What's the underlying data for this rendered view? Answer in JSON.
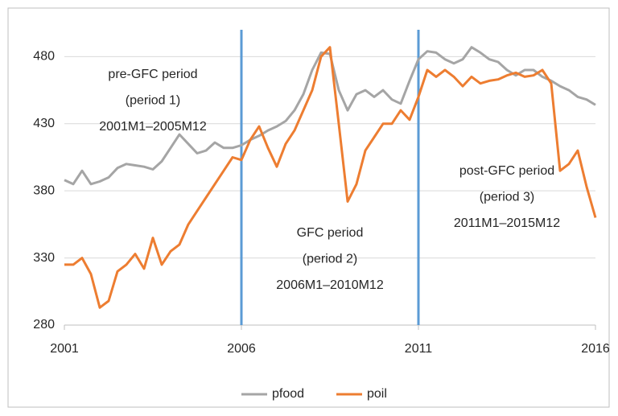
{
  "chart_data": {
    "type": "line",
    "x": [
      2001,
      2001.25,
      2001.5,
      2001.75,
      2002,
      2002.25,
      2002.5,
      2002.75,
      2003,
      2003.25,
      2003.5,
      2003.75,
      2004,
      2004.25,
      2004.5,
      2004.75,
      2005,
      2005.25,
      2005.5,
      2005.75,
      2006,
      2006.25,
      2006.5,
      2006.75,
      2007,
      2007.25,
      2007.5,
      2007.75,
      2008,
      2008.25,
      2008.5,
      2008.75,
      2009,
      2009.25,
      2009.5,
      2009.75,
      2010,
      2010.25,
      2010.5,
      2010.75,
      2011,
      2011.25,
      2011.5,
      2011.75,
      2012,
      2012.25,
      2012.5,
      2012.75,
      2013,
      2013.25,
      2013.5,
      2013.75,
      2014,
      2014.25,
      2014.5,
      2014.75,
      2015,
      2015.25,
      2015.5,
      2015.75,
      2016
    ],
    "series": [
      {
        "name": "pfood",
        "color": "#a5a5a5",
        "values": [
          388,
          385,
          395,
          385,
          387,
          390,
          397,
          400,
          399,
          398,
          396,
          402,
          412,
          422,
          415,
          408,
          410,
          416,
          412,
          412,
          414,
          418,
          421,
          425,
          428,
          432,
          440,
          452,
          470,
          483,
          482,
          455,
          440,
          452,
          455,
          450,
          455,
          448,
          445,
          462,
          478,
          484,
          483,
          478,
          475,
          478,
          487,
          483,
          478,
          476,
          470,
          466,
          470,
          470,
          465,
          462,
          458,
          455,
          450,
          448,
          444
        ]
      },
      {
        "name": "poil",
        "color": "#ed7d31",
        "values": [
          325,
          325,
          330,
          318,
          293,
          298,
          320,
          325,
          333,
          322,
          345,
          325,
          335,
          340,
          355,
          365,
          375,
          385,
          395,
          405,
          403,
          418,
          428,
          412,
          398,
          415,
          425,
          440,
          455,
          480,
          487,
          430,
          372,
          385,
          410,
          420,
          430,
          430,
          440,
          433,
          450,
          470,
          465,
          470,
          465,
          458,
          465,
          460,
          462,
          463,
          466,
          468,
          465,
          466,
          470,
          460,
          395,
          400,
          410,
          383,
          360
        ]
      }
    ],
    "xlim": [
      2001,
      2016
    ],
    "xticks": [
      2001,
      2006,
      2011,
      2016
    ],
    "ylim": [
      280,
      500
    ],
    "yticks": [
      280,
      330,
      380,
      430,
      480
    ],
    "grid": true,
    "vlines": [
      2006,
      2011
    ],
    "vline_color": "#5b9bd5",
    "annotations": [
      [
        "pre-GFC period",
        "(period 1)",
        "2001M1–2005M12"
      ],
      [
        "GFC period",
        "(period 2)",
        "2006M1–2010M12"
      ],
      [
        "post-GFC period",
        "(period 3)",
        "2011M1–2015M12"
      ]
    ],
    "legend": "bottom"
  }
}
